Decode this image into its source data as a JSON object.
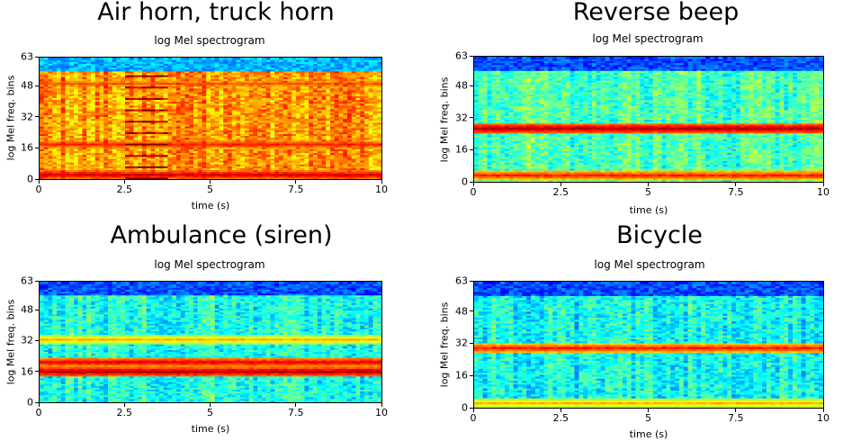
{
  "chart_data": [
    {
      "type": "heatmap",
      "title": "Air horn, truck horn",
      "subtitle": "log Mel spectrogram",
      "xlabel": "time (s)",
      "ylabel": "log Mel freq. bins",
      "xlim": [
        0,
        10
      ],
      "ylim": [
        0,
        63
      ],
      "xticks": [
        "0",
        "2.5",
        "5",
        "7.5",
        "10"
      ],
      "yticks": [
        "0",
        "16",
        "32",
        "48",
        "63"
      ],
      "colormap": "jet",
      "features": {
        "background_level": 0.72,
        "top_band_level": 0.3,
        "horizontal_bands": [
          {
            "bin": 2,
            "level": 0.92
          },
          {
            "bin": 18,
            "level": 0.85
          },
          {
            "bin": 50,
            "level": 0.8
          }
        ],
        "harmonic_stack_time": [
          2.5,
          3.7
        ]
      }
    },
    {
      "type": "heatmap",
      "title": "Reverse beep",
      "subtitle": "log Mel spectrogram",
      "xlabel": "time (s)",
      "ylabel": "log Mel freq. bins",
      "xlim": [
        0,
        10
      ],
      "ylim": [
        0,
        63
      ],
      "xticks": [
        "0",
        "2.5",
        "5",
        "7.5",
        "10"
      ],
      "yticks": [
        "0",
        "16",
        "32",
        "48",
        "63"
      ],
      "colormap": "jet",
      "features": {
        "background_level": 0.45,
        "top_band_level": 0.2,
        "horizontal_bands": [
          {
            "bin": 27,
            "level": 0.95
          },
          {
            "bin": 3,
            "level": 0.85
          }
        ]
      }
    },
    {
      "type": "heatmap",
      "title": "Ambulance (siren)",
      "subtitle": "log Mel spectrogram",
      "xlabel": "time (s)",
      "ylabel": "log Mel freq. bins",
      "xlim": [
        0,
        10
      ],
      "ylim": [
        0,
        63
      ],
      "xticks": [
        "0",
        "2.5",
        "5",
        "7.5",
        "10"
      ],
      "yticks": [
        "0",
        "16",
        "32",
        "48",
        "63"
      ],
      "colormap": "jet",
      "features": {
        "background_level": 0.4,
        "top_band_level": 0.2,
        "horizontal_bands": [
          {
            "bin": 16,
            "level": 0.95
          },
          {
            "bin": 21,
            "level": 0.9
          },
          {
            "bin": 33,
            "level": 0.7
          }
        ]
      }
    },
    {
      "type": "heatmap",
      "title": "Bicycle",
      "subtitle": "log Mel spectrogram",
      "xlabel": "time (s)",
      "ylabel": "log Mel freq. bins",
      "xlim": [
        0,
        10
      ],
      "ylim": [
        0,
        63
      ],
      "xticks": [
        "0",
        "2.5",
        "5",
        "7.5",
        "10"
      ],
      "yticks": [
        "0",
        "16",
        "32",
        "48",
        "63"
      ],
      "colormap": "jet",
      "features": {
        "background_level": 0.38,
        "top_band_level": 0.2,
        "horizontal_bands": [
          {
            "bin": 30,
            "level": 0.85
          },
          {
            "bin": 2,
            "level": 0.7
          }
        ]
      }
    }
  ]
}
